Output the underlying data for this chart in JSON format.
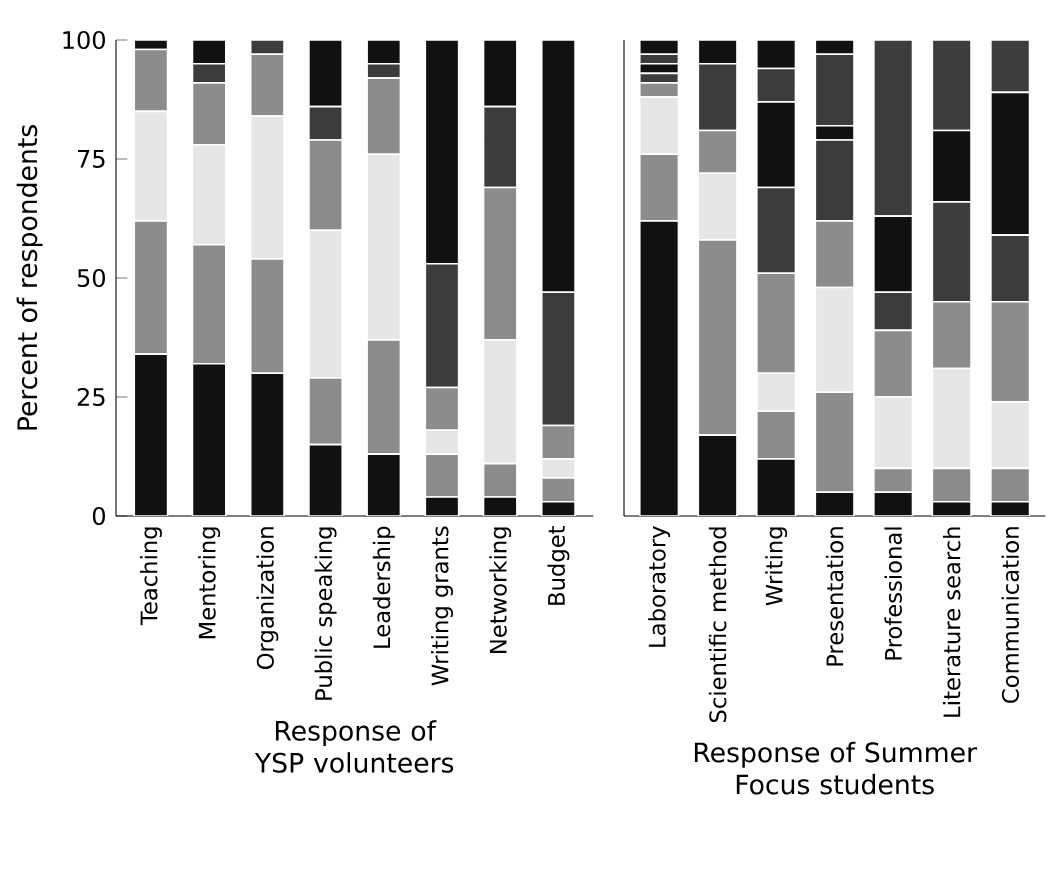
{
  "chart_data": [
    {
      "type": "bar",
      "stacked": true,
      "ylabel": "Percent of respondents",
      "xlabel": "Response of YSP volunteers",
      "categories": [
        "Teaching",
        "Mentoring",
        "Organization",
        "Public speaking",
        "Leadership",
        "Writing grants",
        "Networking",
        "Budget"
      ],
      "ylim": [
        0,
        100
      ],
      "yticks": [
        0,
        25,
        50,
        75,
        100
      ],
      "series": [
        {
          "color": "#111111",
          "values": [
            34,
            32,
            30,
            15,
            13,
            4,
            4,
            3
          ]
        },
        {
          "color": "#8c8c8c",
          "values": [
            28,
            25,
            24,
            14,
            24,
            9,
            7,
            5
          ]
        },
        {
          "color": "#e6e6e6",
          "values": [
            23,
            21,
            30,
            31,
            39,
            5,
            26,
            4
          ]
        },
        {
          "color": "#8c8c8c",
          "values": [
            13,
            13,
            13,
            19,
            16,
            9,
            32,
            7
          ]
        },
        {
          "color": "#3c3c3c",
          "values": [
            0,
            4,
            3,
            7,
            3,
            26,
            17,
            28
          ]
        },
        {
          "color": "#111111",
          "values": [
            2,
            5,
            0,
            14,
            5,
            47,
            14,
            53
          ]
        }
      ]
    },
    {
      "type": "bar",
      "stacked": true,
      "xlabel": "Response of Summer Focus students",
      "categories": [
        "Laboratory",
        "Scientific method",
        "Writing",
        "Presentation",
        "Professional",
        "Literature search",
        "Communication"
      ],
      "ylim": [
        0,
        100
      ],
      "tick_labels": "x",
      "series": [
        {
          "color": "#111111",
          "values": [
            62,
            17,
            12,
            5,
            5,
            3,
            3
          ]
        },
        {
          "color": "#8c8c8c",
          "values": [
            14,
            41,
            10,
            21,
            5,
            7,
            7
          ]
        },
        {
          "color": "#e6e6e6",
          "values": [
            12,
            14,
            8,
            22,
            15,
            21,
            14
          ]
        },
        {
          "color": "#8c8c8c",
          "values": [
            3,
            9,
            21,
            14,
            14,
            14,
            21
          ]
        },
        {
          "color": "#3c3c3c",
          "values": [
            2,
            14,
            18,
            17,
            8,
            21,
            14
          ]
        },
        {
          "color": "#111111",
          "values": [
            2,
            5,
            18,
            3,
            16,
            15,
            30
          ]
        },
        {
          "color": "#3c3c3c",
          "values": [
            2,
            0,
            7,
            15,
            37,
            19,
            11
          ]
        },
        {
          "color": "#111111",
          "values": [
            3,
            0,
            6,
            3,
            0,
            0,
            0
          ]
        }
      ]
    }
  ]
}
